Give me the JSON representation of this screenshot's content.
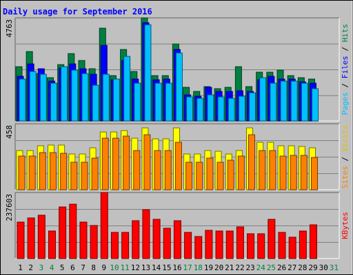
{
  "chart_data": {
    "type": "bar",
    "title": "Daily usage for September 2016",
    "categories": [
      "1",
      "2",
      "3",
      "4",
      "5",
      "6",
      "7",
      "8",
      "9",
      "10",
      "11",
      "12",
      "13",
      "14",
      "15",
      "16",
      "17",
      "18",
      "19",
      "20",
      "21",
      "22",
      "23",
      "24",
      "25",
      "26",
      "27",
      "28",
      "29",
      "30",
      "31"
    ],
    "weekend_days": [
      "3",
      "4",
      "10",
      "11",
      "17",
      "18",
      "24",
      "25",
      "31"
    ],
    "panels": [
      {
        "id": "pages-files-hits",
        "ymax": 4763,
        "ymax_label": "4763",
        "right_label": [
          "Pages",
          " / ",
          "Files",
          " / ",
          "Hits"
        ],
        "series": [
          {
            "name": "Hits",
            "color": "#008040",
            "values": [
              2500,
              3200,
              2200,
              2000,
              2600,
              3100,
              2800,
              2400,
              4300,
              2100,
              3300,
              2300,
              4763,
              2100,
              2100,
              3550,
              1550,
              1350,
              1600,
              1500,
              1550,
              2500,
              1600,
              2250,
              2250,
              2350,
              2100,
              2000,
              1950,
              null,
              null
            ]
          },
          {
            "name": "Files",
            "color": "#0000ff",
            "values": [
              2050,
              2650,
              2400,
              1850,
              2450,
              2650,
              2400,
              2150,
              3500,
              1900,
              2800,
              1950,
              4550,
              1900,
              1950,
              3300,
              1200,
              1150,
              1550,
              1350,
              1350,
              1400,
              1350,
              1900,
              2050,
              1950,
              1950,
              1800,
              1750,
              null,
              null
            ]
          },
          {
            "name": "Pages",
            "color": "#00c0ff",
            "values": [
              1950,
              2300,
              2150,
              1750,
              2500,
              2350,
              2200,
              1650,
              2150,
              1950,
              3000,
              1750,
              4450,
              1750,
              1750,
              3150,
              1100,
              1050,
              1200,
              1100,
              1050,
              1150,
              1300,
              2000,
              1750,
              1850,
              1850,
              1750,
              1500,
              null,
              null
            ]
          }
        ]
      },
      {
        "id": "visits-sites",
        "ymax": 458,
        "ymax_label": "458",
        "right_label": [
          "Sites",
          " / ",
          "Visits"
        ],
        "series": [
          {
            "name": "Visits",
            "color": "#ffff00",
            "values": [
              270,
              270,
              305,
              310,
              310,
              250,
              250,
              290,
              400,
              400,
              410,
              360,
              430,
              355,
              355,
              430,
              250,
              250,
              270,
              265,
              250,
              270,
              430,
              330,
              330,
              305,
              305,
              300,
              290,
              null,
              null
            ]
          },
          {
            "name": "Sites",
            "color": "#ff8000",
            "values": [
              235,
              235,
              260,
              260,
              255,
              190,
              190,
              220,
              360,
              360,
              370,
              270,
              380,
              270,
              270,
              330,
              190,
              190,
              220,
              190,
              205,
              235,
              380,
              270,
              270,
              235,
              240,
              240,
              225,
              null,
              null
            ]
          }
        ]
      },
      {
        "id": "kbytes",
        "ymax": 237603,
        "ymax_label": "237603",
        "right_label": [
          "KBytes"
        ],
        "series": [
          {
            "name": "KBytes",
            "color": "#ff0000",
            "values": [
              130000,
              145000,
              155000,
              100000,
              185000,
              195000,
              130000,
              120000,
              237603,
              95000,
              95000,
              135000,
              175000,
              140000,
              110000,
              137000,
              95000,
              80000,
              102000,
              98000,
              99000,
              115000,
              90000,
              88000,
              140000,
              93000,
              77000,
              98000,
              122000,
              null,
              null
            ]
          }
        ]
      }
    ]
  }
}
